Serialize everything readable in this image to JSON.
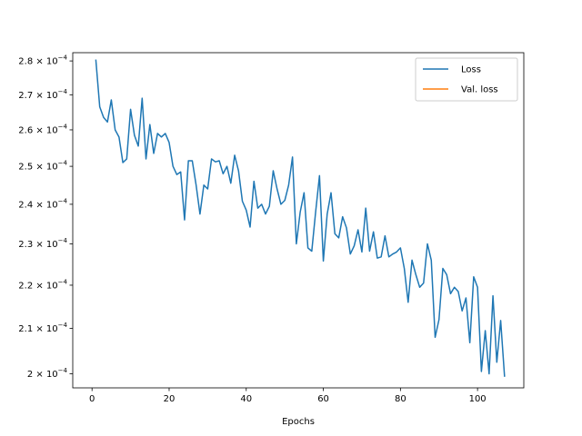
{
  "chart_data": {
    "type": "line",
    "xlabel": "Epochs",
    "ylabel": "",
    "xlim": [
      -5,
      112
    ],
    "ylim": [
      0.000197,
      0.0002825
    ],
    "yscale": "log",
    "xticks": [
      0,
      20,
      40,
      60,
      80,
      100
    ],
    "xtick_labels": [
      "0",
      "20",
      "40",
      "60",
      "80",
      "100"
    ],
    "yticks": [
      0.0002,
      0.00021,
      0.00022,
      0.00023,
      0.00024,
      0.00025,
      0.00026,
      0.00027,
      0.00028
    ],
    "ytick_labels": [
      {
        "mant": "2",
        "exp": "−4"
      },
      {
        "mant": "2.1",
        "exp": "−4"
      },
      {
        "mant": "2.2",
        "exp": "−4"
      },
      {
        "mant": "2.3",
        "exp": "−4"
      },
      {
        "mant": "2.4",
        "exp": "−4"
      },
      {
        "mant": "2.5",
        "exp": "−4"
      },
      {
        "mant": "2.6",
        "exp": "−4"
      },
      {
        "mant": "2.7",
        "exp": "−4"
      },
      {
        "mant": "2.8",
        "exp": "−4"
      }
    ],
    "legend": {
      "placement": "upper-right",
      "entries": [
        {
          "label": "Loss",
          "color": "#1f77b4"
        },
        {
          "label": "Val. loss",
          "color": "#ff7f0e"
        }
      ]
    },
    "series": [
      {
        "name": "Loss",
        "color": "#1f77b4",
        "x": [
          1,
          2,
          3,
          4,
          5,
          6,
          7,
          8,
          9,
          10,
          11,
          12,
          13,
          14,
          15,
          16,
          17,
          18,
          19,
          20,
          21,
          22,
          23,
          24,
          25,
          26,
          27,
          28,
          29,
          30,
          31,
          32,
          33,
          34,
          35,
          36,
          37,
          38,
          39,
          40,
          41,
          42,
          43,
          44,
          45,
          46,
          47,
          48,
          49,
          50,
          51,
          52,
          53,
          54,
          55,
          56,
          57,
          58,
          59,
          60,
          61,
          62,
          63,
          64,
          65,
          66,
          67,
          68,
          69,
          70,
          71,
          72,
          73,
          74,
          75,
          76,
          77,
          78,
          79,
          80,
          81,
          82,
          83,
          84,
          85,
          86,
          87,
          88,
          89,
          90,
          91,
          92,
          93,
          94,
          95,
          96,
          97,
          98,
          99,
          100,
          101,
          102,
          103,
          104,
          105,
          106,
          107
        ],
        "y": [
          0.0002802,
          0.0002665,
          0.0002635,
          0.0002622,
          0.0002685,
          0.00026,
          0.000258,
          0.000251,
          0.000252,
          0.0002658,
          0.0002585,
          0.0002555,
          0.000269,
          0.000252,
          0.0002615,
          0.0002535,
          0.000259,
          0.000258,
          0.000259,
          0.0002565,
          0.00025,
          0.0002478,
          0.0002485,
          0.000236,
          0.0002515,
          0.0002515,
          0.000245,
          0.0002375,
          0.000245,
          0.000244,
          0.000252,
          0.0002512,
          0.0002515,
          0.000248,
          0.00025,
          0.0002455,
          0.000253,
          0.0002488,
          0.0002408,
          0.0002385,
          0.0002342,
          0.000246,
          0.000239,
          0.00024,
          0.0002375,
          0.0002395,
          0.0002488,
          0.000244,
          0.00024,
          0.000241,
          0.000245,
          0.0002525,
          0.00023,
          0.000238,
          0.000243,
          0.000229,
          0.0002282,
          0.000238,
          0.0002475,
          0.0002258,
          0.0002375,
          0.000243,
          0.0002325,
          0.0002315,
          0.0002368,
          0.000234,
          0.0002275,
          0.0002295,
          0.0002335,
          0.000228,
          0.000239,
          0.0002282,
          0.000233,
          0.0002265,
          0.0002268,
          0.000232,
          0.0002268,
          0.0002275,
          0.000228,
          0.000229,
          0.000224,
          0.000216,
          0.000226,
          0.0002225,
          0.0002195,
          0.0002205,
          0.00023,
          0.000226,
          0.000208,
          0.000212,
          0.000224,
          0.0002225,
          0.000218,
          0.0002195,
          0.0002185,
          0.000214,
          0.000217,
          0.0002068,
          0.000222,
          0.0002195,
          0.0002005,
          0.0002095,
          0.0002,
          0.0002175,
          0.0002025,
          0.0002118,
          0.0001995
        ]
      },
      {
        "name": "Val. loss",
        "color": "#ff7f0e",
        "x": [],
        "y": []
      }
    ]
  }
}
